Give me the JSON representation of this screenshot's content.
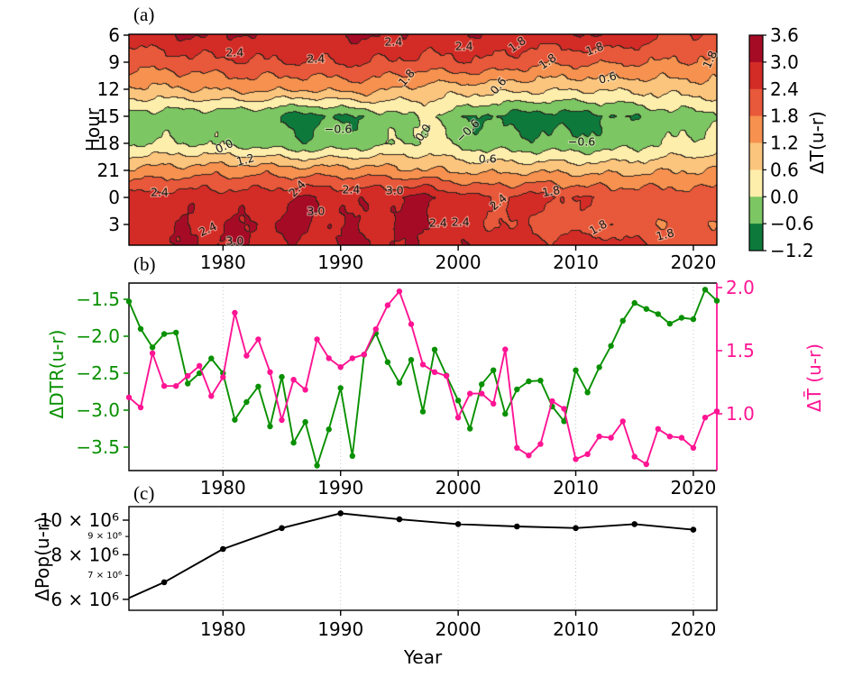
{
  "chart_data": [
    {
      "id": "a",
      "type": "heatmap",
      "label": "(a)",
      "ylabel": "Hour",
      "zlabel": "ΔT(u-r)",
      "x_years": [
        1972,
        1977,
        1982,
        1987,
        1992,
        1997,
        2002,
        2007,
        2012,
        2017,
        2022
      ],
      "y_hours": [
        6,
        9,
        12,
        15,
        18,
        21,
        24,
        27,
        30
      ],
      "grid": [
        [
          2.6,
          3.05,
          2.95,
          2.75,
          3.1,
          2.8,
          2.95,
          2.7,
          3.0,
          2.5,
          2.2
        ],
        [
          2.05,
          2.15,
          2.35,
          2.4,
          2.45,
          2.2,
          2.35,
          1.95,
          1.9,
          1.8,
          1.7
        ],
        [
          1.05,
          1.15,
          1.35,
          1.25,
          1.45,
          0.95,
          0.85,
          0.7,
          0.65,
          0.8,
          0.95
        ],
        [
          -0.3,
          -0.38,
          -0.45,
          -0.85,
          -0.5,
          0.12,
          -0.68,
          -0.9,
          -0.75,
          -0.35,
          -0.15
        ],
        [
          -0.05,
          0.02,
          -0.22,
          -0.5,
          -0.3,
          0.15,
          -0.35,
          -0.45,
          -0.4,
          -0.05,
          0.25
        ],
        [
          1.35,
          1.5,
          1.6,
          1.45,
          1.5,
          1.25,
          1.05,
          1.1,
          1.0,
          1.1,
          1.25
        ],
        [
          2.6,
          2.8,
          2.7,
          3.0,
          2.85,
          3.15,
          2.4,
          2.6,
          2.3,
          2.2,
          2.1
        ],
        [
          2.7,
          2.95,
          3.0,
          3.05,
          2.9,
          3.1,
          2.5,
          2.2,
          2.0,
          1.9,
          1.9
        ],
        [
          2.6,
          3.05,
          2.95,
          2.75,
          3.1,
          2.8,
          2.95,
          2.7,
          3.0,
          2.5,
          2.2
        ]
      ],
      "levels": [
        -1.2,
        -0.6,
        0.0,
        0.6,
        1.2,
        1.8,
        2.4,
        3.0,
        3.6
      ],
      "band_colors_low_to_high": [
        "#0d7a3c",
        "#7cc663",
        "#feeeab",
        "#fcc57d",
        "#f6914f",
        "#e8583a",
        "#d32b26",
        "#a60b26"
      ],
      "colorbar_tick_labels": [
        "3.6",
        "3.0",
        "2.4",
        "1.8",
        "1.2",
        "0.6",
        "0.0",
        "−0.6",
        "−1.2"
      ],
      "ytick_labels": [
        "6",
        "9",
        "12",
        "15",
        "18",
        "21",
        "0",
        "3"
      ],
      "ytick_hours": [
        6,
        9,
        12,
        15,
        18,
        21,
        24,
        27
      ],
      "xtick_labels": [
        "1980",
        "1990",
        "2000",
        "2010",
        "2020"
      ],
      "xtick_years": [
        1980,
        1990,
        2000,
        2010,
        2020
      ],
      "contour_labels": [
        {
          "year": 1981.0,
          "hour": 7.9,
          "text": "2.4",
          "rot": 0
        },
        {
          "year": 1987.9,
          "hour": 8.6,
          "text": "2.4",
          "rot": 0
        },
        {
          "year": 1994.5,
          "hour": 6.7,
          "text": "2.4",
          "rot": 0
        },
        {
          "year": 2000.5,
          "hour": 7.2,
          "text": "2.4",
          "rot": 0
        },
        {
          "year": 1995.6,
          "hour": 10.7,
          "text": "1.8",
          "rot": -50
        },
        {
          "year": 2005.0,
          "hour": 7.0,
          "text": "1.8",
          "rot": -35
        },
        {
          "year": 2007.6,
          "hour": 8.9,
          "text": "1.8",
          "rot": -35
        },
        {
          "year": 2011.6,
          "hour": 7.5,
          "text": "1.8",
          "rot": -20
        },
        {
          "year": 2021.4,
          "hour": 8.7,
          "text": "1.8",
          "rot": -65
        },
        {
          "year": 2003.4,
          "hour": 11.6,
          "text": "0.6",
          "rot": -50
        },
        {
          "year": 2012.7,
          "hour": 10.7,
          "text": "0.6",
          "rot": -15
        },
        {
          "year": 1980.1,
          "hour": 18.3,
          "text": "0.0",
          "rot": -25
        },
        {
          "year": 1997.0,
          "hour": 16.8,
          "text": "0.0",
          "rot": -55
        },
        {
          "year": 1989.8,
          "hour": 16.4,
          "text": "−0.6",
          "rot": 0
        },
        {
          "year": 2000.8,
          "hour": 16.6,
          "text": "−0.6",
          "rot": -45
        },
        {
          "year": 2010.5,
          "hour": 17.8,
          "text": "−0.6",
          "rot": 0
        },
        {
          "year": 1981.9,
          "hour": 19.8,
          "text": "1.2",
          "rot": -15
        },
        {
          "year": 2002.5,
          "hour": 19.7,
          "text": "0.6",
          "rot": 0
        },
        {
          "year": 1974.6,
          "hour": 23.4,
          "text": "2.4",
          "rot": 0
        },
        {
          "year": 1978.7,
          "hour": 27.5,
          "text": "2.4",
          "rot": -25
        },
        {
          "year": 1986.3,
          "hour": 23.0,
          "text": "2.4",
          "rot": -45
        },
        {
          "year": 1990.9,
          "hour": 23.1,
          "text": "2.4",
          "rot": 0
        },
        {
          "year": 1998.3,
          "hour": 26.8,
          "text": "2.4",
          "rot": 0
        },
        {
          "year": 2000.2,
          "hour": 26.7,
          "text": "2.4",
          "rot": 0
        },
        {
          "year": 2003.4,
          "hour": 24.5,
          "text": "2.4",
          "rot": -40
        },
        {
          "year": 1981.0,
          "hour": 28.8,
          "text": "3.0",
          "rot": 0
        },
        {
          "year": 1987.9,
          "hour": 25.5,
          "text": "3.0",
          "rot": 0
        },
        {
          "year": 1994.6,
          "hour": 23.2,
          "text": "3.0",
          "rot": 0
        },
        {
          "year": 2007.9,
          "hour": 23.3,
          "text": "1.8",
          "rot": -10
        },
        {
          "year": 2011.9,
          "hour": 27.3,
          "text": "1.8",
          "rot": -30
        },
        {
          "year": 2017.6,
          "hour": 28.1,
          "text": "1.8",
          "rot": -15
        }
      ]
    },
    {
      "id": "b",
      "type": "line",
      "label": "(b)",
      "years": [
        1972,
        1973,
        1974,
        1975,
        1976,
        1977,
        1978,
        1979,
        1980,
        1981,
        1982,
        1983,
        1984,
        1985,
        1986,
        1987,
        1988,
        1989,
        1990,
        1991,
        1992,
        1993,
        1994,
        1995,
        1996,
        1997,
        1998,
        1999,
        2000,
        2001,
        2002,
        2003,
        2004,
        2005,
        2006,
        2007,
        2008,
        2009,
        2010,
        2011,
        2012,
        2013,
        2014,
        2015,
        2016,
        2017,
        2018,
        2019,
        2020,
        2021,
        2022
      ],
      "series": [
        {
          "name": "ΔDTR(u-r)",
          "axis": "left",
          "color": "#089000",
          "values": [
            -1.53,
            -1.9,
            -2.15,
            -1.97,
            -1.95,
            -2.64,
            -2.5,
            -2.3,
            -2.5,
            -3.13,
            -2.89,
            -2.68,
            -3.22,
            -2.55,
            -3.44,
            -3.16,
            -3.75,
            -3.26,
            -2.7,
            -3.62,
            -2.25,
            -1.96,
            -2.35,
            -2.63,
            -2.32,
            -3.02,
            -2.18,
            -2.53,
            -2.87,
            -3.25,
            -2.65,
            -2.46,
            -3.05,
            -2.72,
            -2.61,
            -2.6,
            -2.95,
            -3.15,
            -2.46,
            -2.76,
            -2.42,
            -2.13,
            -1.79,
            -1.55,
            -1.63,
            -1.7,
            -1.83,
            -1.75,
            -1.77,
            -1.37,
            -1.52
          ]
        },
        {
          "name": "ΔT̄ (u-r)",
          "axis": "right",
          "color": "#ff1493",
          "values": [
            1.13,
            1.05,
            1.48,
            1.22,
            1.22,
            1.3,
            1.38,
            1.14,
            1.29,
            1.8,
            1.46,
            1.59,
            1.33,
            0.95,
            1.27,
            1.19,
            1.59,
            1.44,
            1.37,
            1.44,
            1.47,
            1.67,
            1.86,
            1.97,
            1.71,
            1.39,
            1.33,
            1.3,
            0.97,
            1.16,
            1.16,
            1.08,
            1.51,
            0.73,
            0.67,
            0.76,
            1.1,
            1.04,
            0.64,
            0.68,
            0.82,
            0.81,
            0.94,
            0.66,
            0.6,
            0.88,
            0.82,
            0.81,
            0.73,
            0.97,
            1.02
          ]
        }
      ],
      "left_axis": {
        "label": "ΔDTR(u-r)",
        "ticks": [
          -1.5,
          -2.0,
          -2.5,
          -3.0,
          -3.5
        ],
        "tick_labels": [
          "−1.5",
          "−2.0",
          "−2.5",
          "−3.0",
          "−3.5"
        ]
      },
      "right_axis": {
        "label": "ΔT̄ (u-r)",
        "ticks": [
          2.0,
          1.5,
          1.0
        ],
        "tick_labels": [
          "2.0",
          "1.5",
          "1.0"
        ]
      },
      "xtick_labels": [
        "1980",
        "1990",
        "2000",
        "2010",
        "2020"
      ],
      "xtick_years": [
        1980,
        1990,
        2000,
        2010,
        2020
      ]
    },
    {
      "id": "c",
      "type": "line",
      "label": "(c)",
      "xlabel": "Year",
      "ylabel": "ΔPop(u-r)",
      "color": "#000000",
      "years": [
        1972,
        1975,
        1980,
        1985,
        1990,
        1995,
        2000,
        2005,
        2010,
        2015,
        2020
      ],
      "values_millions": [
        6.05,
        6.7,
        8.3,
        9.5,
        10.45,
        10.05,
        9.75,
        9.6,
        9.5,
        9.75,
        9.4
      ],
      "ytick_major": {
        "values_millions": [
          10,
          8,
          6
        ],
        "labels": [
          "10 × 10⁶",
          "8 × 10⁶",
          "6 × 10⁶"
        ]
      },
      "ytick_minor": {
        "values_millions": [
          9,
          7
        ],
        "labels": [
          "9 × 10⁶",
          "7 × 10⁶"
        ]
      },
      "xtick_labels": [
        "1980",
        "1990",
        "2000",
        "2010",
        "2020"
      ],
      "xtick_years": [
        1980,
        1990,
        2000,
        2010,
        2020
      ]
    }
  ],
  "style_colors": {
    "green_series": "#089000",
    "pink_series": "#ff1493",
    "pop_series": "#000000",
    "gridline": "#c8c8c8",
    "spine": "#000000"
  }
}
